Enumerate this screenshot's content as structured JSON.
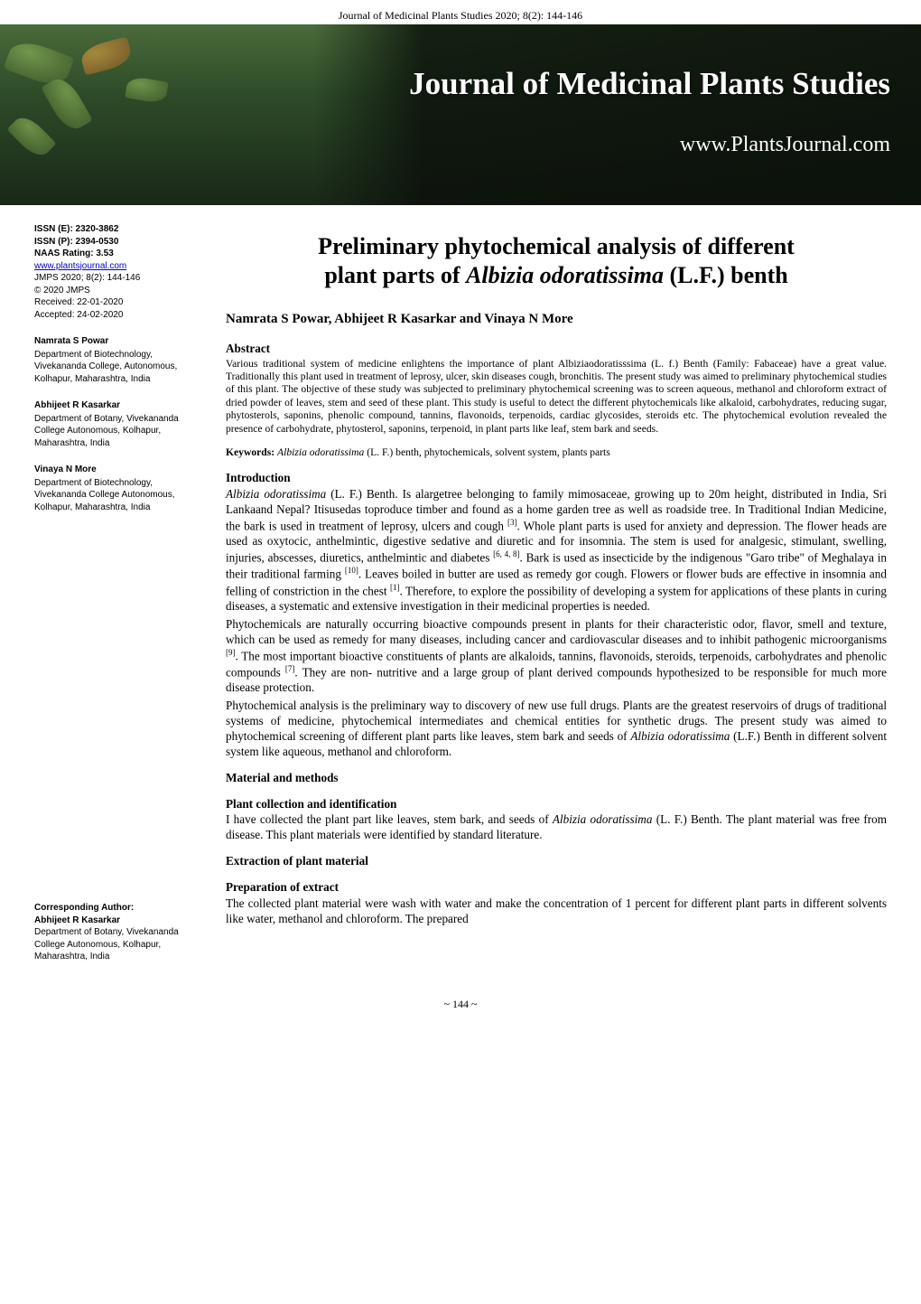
{
  "top": {
    "citation": "Journal of Medicinal Plants Studies 2020; 8(2): 144-146"
  },
  "header": {
    "journal_name": "Journal of Medicinal Plants Studies",
    "journal_url": "www.PlantsJournal.com",
    "colors": {
      "bg_dark": "#1a2818",
      "bg_mid": "#2d4a28",
      "bg_light": "#4a6b3a",
      "leaf_light": "#7aa050",
      "leaf_dark": "#3d5a2a",
      "text": "#ffffff"
    }
  },
  "sidebar": {
    "issn_e_label": "ISSN (E): 2320-3862",
    "issn_p_label": "ISSN (P): 2394-0530",
    "naas": "NAAS Rating: 3.53",
    "url": "www.plantsjournal.com",
    "jmps": "JMPS 2020; 8(2): 144-146",
    "copyright": "© 2020 JMPS",
    "received": "Received: 22-01-2020",
    "accepted": "Accepted: 24-02-2020",
    "authors": [
      {
        "name": "Namrata S Powar",
        "affil": "Department of Biotechnology, Vivekananda College, Autonomous, Kolhapur, Maharashtra, India"
      },
      {
        "name": "Abhijeet R Kasarkar",
        "affil": "Department of Botany, Vivekananda College Autonomous, Kolhapur, Maharashtra, India"
      },
      {
        "name": "Vinaya N More",
        "affil": "Department of Biotechnology, Vivekananda College Autonomous, Kolhapur, Maharashtra, India"
      }
    ],
    "corr_label": "Corresponding Author:",
    "corr_name": "Abhijeet R Kasarkar",
    "corr_affil": "Department of Botany, Vivekananda College Autonomous, Kolhapur, Maharashtra, India"
  },
  "main": {
    "title_l1": "Preliminary phytochemical analysis of different",
    "title_l2": "plant parts of Albizia odoratissima (L.F.) benth",
    "title_italic": "Albizia odoratissima",
    "authors_line": "Namrata S Powar, Abhijeet R Kasarkar and Vinaya N More",
    "abstract_head": "Abstract",
    "abstract": "Various traditional system of medicine enlightens the importance of plant Albiziaodoratisssima (L. f.) Benth (Family: Fabaceae) have a great value. Traditionally this plant used in treatment of leprosy, ulcer, skin diseases cough, bronchitis. The present study was aimed to preliminary phytochemical studies of this plant. The objective of these study was subjected to preliminary phytochemical screening was to screen aqueous, methanol and chloroform extract of dried powder of leaves, stem and seed of these plant. This study is useful to detect the different phytochemicals like alkaloid, carbohydrates, reducing sugar, phytosterols, saponins, phenolic compound, tannins, flavonoids, terpenoids, cardiac glycosides, steroids etc. The phytochemical evolution revealed the presence of carbohydrate, phytosterol, saponins, terpenoid, in plant parts like leaf, stem bark and seeds.",
    "keywords_label": "Keywords:",
    "keywords_italic": "Albizia odoratissima",
    "keywords_rest": " (L. F.) benth, phytochemicals, solvent system, plants parts",
    "intro_head": "Introduction",
    "intro_p1a": "Albizia odoratissima",
    "intro_p1b": " (L. F.) Benth. Is alargetree belonging to family mimosaceae, growing up to 20m height, distributed in India, Sri Lankaand Nepal? Itisusedas toproduce timber and found as a home garden tree as well as roadside tree. In Traditional Indian Medicine, the bark is used in treatment of leprosy, ulcers and cough ",
    "intro_p1c": ". Whole plant parts is used for anxiety and depression. The flower heads are used as oxytocic, anthelmintic, digestive sedative and diuretic and for insomnia. The stem is used for analgesic, stimulant, swelling, injuries, abscesses, diuretics, anthelmintic and diabetes ",
    "intro_p1d": ". Bark is used as insecticide by the indigenous \"Garo tribe\" of Meghalaya in their traditional farming ",
    "intro_p1e": ". Leaves boiled in butter are used as remedy gor cough. Flowers or flower buds are effective in insomnia and felling of constriction in the chest ",
    "intro_p1f": ". Therefore, to explore the possibility of developing a system for applications of these plants in curing diseases, a systematic and extensive investigation in their medicinal properties is needed.",
    "cite1": "[3]",
    "cite2": "[6, 4, 8]",
    "cite3": "[10]",
    "cite4": "[1]",
    "intro_p2a": "Phytochemicals are naturally occurring bioactive compounds present in plants for their characteristic odor, flavor, smell and texture, which can be used as remedy for many diseases, including cancer and cardiovascular diseases and to inhibit pathogenic microorganisms ",
    "cite5": "[9]",
    "intro_p2b": ". The most important bioactive constituents of plants are alkaloids, tannins, flavonoids, steroids, terpenoids, carbohydrates and phenolic compounds ",
    "cite6": "[7]",
    "intro_p2c": ". They are non- nutritive and a large group of plant derived compounds hypothesized to be responsible for much more disease protection.",
    "intro_p3a": "Phytochemical analysis is the preliminary way to discovery of new use full drugs. Plants are the greatest reservoirs of drugs of traditional systems of medicine, phytochemical intermediates and chemical entities for synthetic drugs. The present study was aimed to phytochemical screening of different plant parts like leaves, stem bark and seeds of ",
    "intro_p3b": "Albizia odoratissima",
    "intro_p3c": " (L.F.) Benth in different solvent system like aqueous, methanol and chloroform.",
    "mm_head": "Material and methods",
    "pc_head": "Plant collection and identification",
    "pc_p1a": "I have collected the plant part like leaves, stem bark, and seeds of ",
    "pc_p1b": "Albizia odoratissima",
    "pc_p1c": " (L. F.) Benth. The plant material was free from disease. This plant materials were identified by standard literature.",
    "ex_head": "Extraction of plant material",
    "pe_head": "Preparation of extract",
    "pe_p": "The collected plant material were wash with water and make the concentration of 1 percent for different plant parts in different solvents like water, methanol and chloroform. The prepared"
  },
  "footer": {
    "page": "~ 144 ~"
  }
}
